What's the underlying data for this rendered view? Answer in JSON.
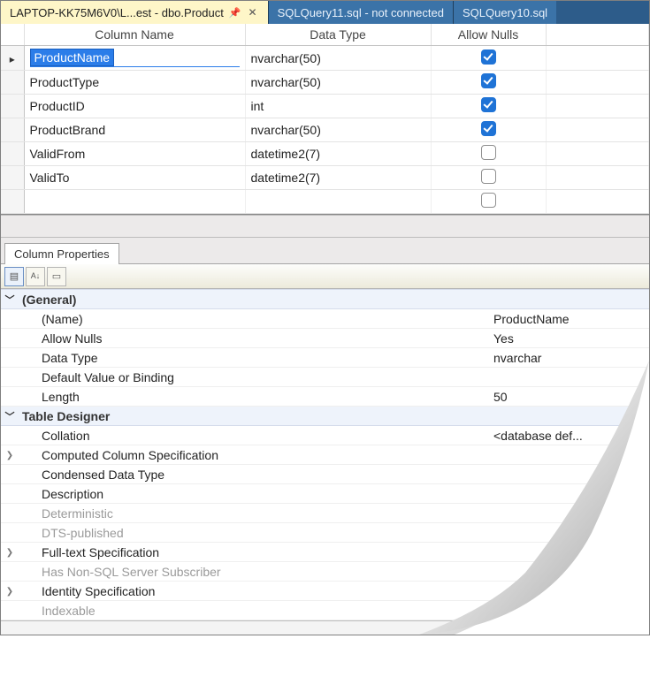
{
  "tabs": [
    {
      "label": "LAPTOP-KK75M6V0\\L...est - dbo.Product",
      "active": true,
      "pinned": true,
      "closable": true
    },
    {
      "label": "SQLQuery11.sql - not connected",
      "active": false
    },
    {
      "label": "SQLQuery10.sql",
      "active": false
    }
  ],
  "grid": {
    "headers": {
      "col1": "Column Name",
      "col2": "Data Type",
      "col3": "Allow Nulls"
    },
    "rows": [
      {
        "name": "ProductName",
        "type": "nvarchar(50)",
        "nulls": true,
        "selected": true,
        "editing": true
      },
      {
        "name": "ProductType",
        "type": "nvarchar(50)",
        "nulls": true
      },
      {
        "name": "ProductID",
        "type": "int",
        "nulls": true
      },
      {
        "name": "ProductBrand",
        "type": "nvarchar(50)",
        "nulls": true
      },
      {
        "name": "ValidFrom",
        "type": "datetime2(7)",
        "nulls": false
      },
      {
        "name": "ValidTo",
        "type": "datetime2(7)",
        "nulls": false
      },
      {
        "name": "",
        "type": "",
        "nulls": false
      }
    ]
  },
  "props": {
    "tabLabel": "Column Properties",
    "groups": [
      {
        "label": "(General)",
        "expanded": true,
        "items": [
          {
            "key": "(Name)",
            "value": "ProductName"
          },
          {
            "key": "Allow Nulls",
            "value": "Yes"
          },
          {
            "key": "Data Type",
            "value": "nvarchar"
          },
          {
            "key": "Default Value or Binding",
            "value": ""
          },
          {
            "key": "Length",
            "value": "50"
          }
        ]
      },
      {
        "label": "Table Designer",
        "expanded": true,
        "items": [
          {
            "key": "Collation",
            "value": "<database def..."
          },
          {
            "key": "Computed Column Specification",
            "value": "",
            "expandable": true
          },
          {
            "key": "Condensed Data Type",
            "value": ""
          },
          {
            "key": "Description",
            "value": ""
          },
          {
            "key": "Deterministic",
            "value": "",
            "disabled": true
          },
          {
            "key": "DTS-published",
            "value": "",
            "disabled": true
          },
          {
            "key": "Full-text Specification",
            "value": "",
            "expandable": true
          },
          {
            "key": "Has Non-SQL Server Subscriber",
            "value": "",
            "disabled": true
          },
          {
            "key": "Identity Specification",
            "value": "",
            "expandable": true
          },
          {
            "key": "Indexable",
            "value": "",
            "disabled": true
          }
        ]
      }
    ]
  },
  "colors": {
    "tabActiveBg": "#fef6c8",
    "tabInactiveBg": "#3b73a8",
    "tabStripBg": "#2d5c8a",
    "selectionBg": "#2b7de9",
    "checkboxChecked": "#1f73d6",
    "groupRowBg": "#eef3fb"
  }
}
